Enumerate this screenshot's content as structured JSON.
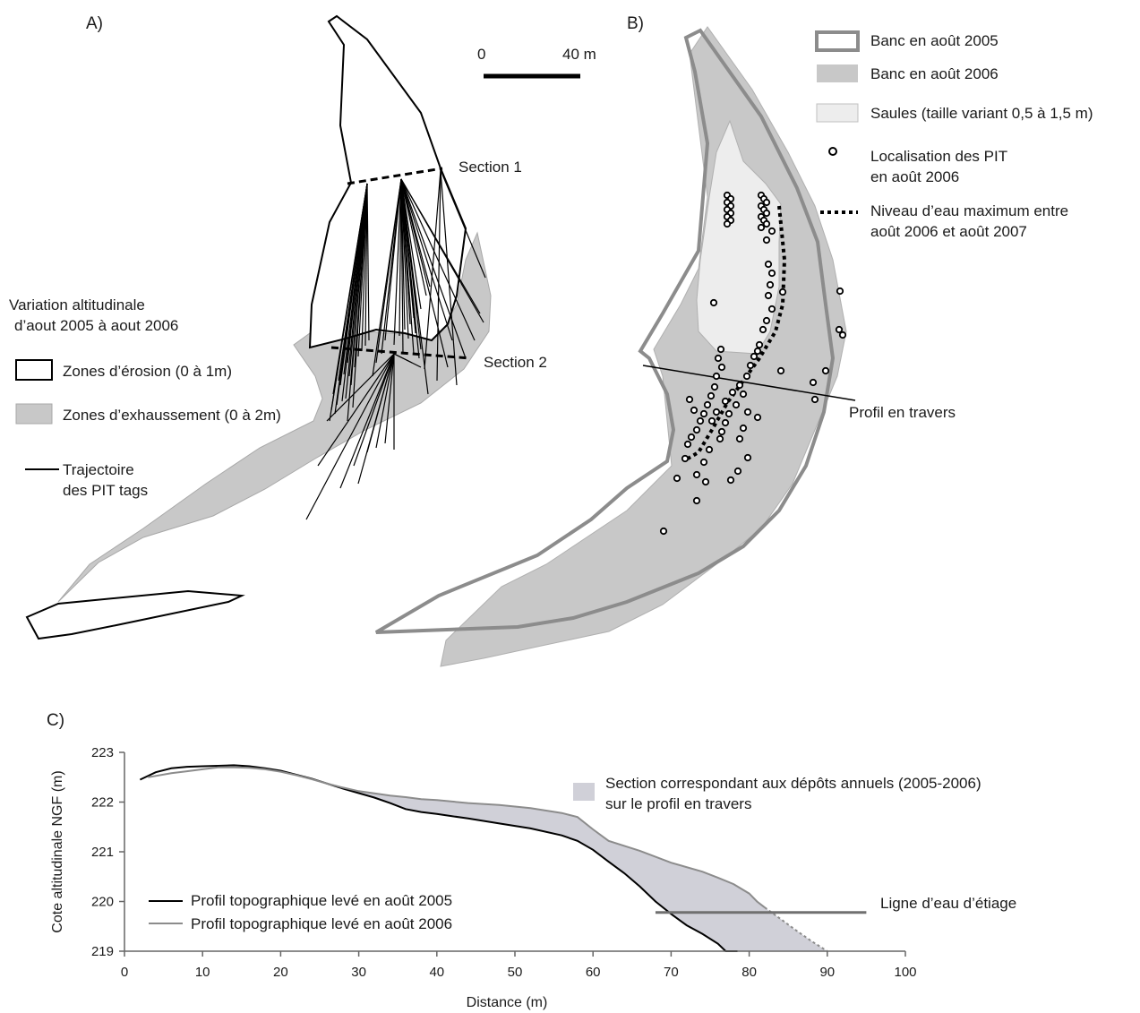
{
  "panel_a": {
    "label": "A)",
    "section1": "Section 1",
    "section2": "Section 2",
    "legend": {
      "title_line1": "Variation altitudinale",
      "title_line2": "d’aout 2005 à aout 2006",
      "erosion": "Zones d’érosion (0 à 1m)",
      "deposit": "Zones d’exhaussement (0 à 2m)",
      "trajectory_line1": "Trajectoire",
      "trajectory_line2": "des PIT tags"
    }
  },
  "scale_bar": {
    "start": "0",
    "end": "40 m"
  },
  "panel_b": {
    "label": "B)",
    "profile_label": "Profil en travers",
    "legend": {
      "bank_2005": "Banc en août 2005",
      "bank_2006": "Banc en août 2006",
      "willows": "Saules (taille variant 0,5 à 1,5 m)",
      "pit_line1": "Localisation des PIT",
      "pit_line2": "en août 2006",
      "water_line1": "Niveau d’eau maximum entre",
      "water_line2": "août 2006 et août 2007"
    }
  },
  "panel_c": {
    "label": "C)",
    "legend_area_line1": "Section  correspondant aux dépôts annuels  (2005-2006)",
    "legend_area_line2": "sur le profil en travers",
    "low_water_label": "Ligne d’eau d’étiage"
  },
  "colors": {
    "deposit_fill": "#c8c8c8",
    "willow_fill": "#ededed",
    "bank2005_stroke": "#8c8c8c",
    "section_fill": "#d0d0d8",
    "profile_2005": "#000000",
    "profile_2006": "#8c8c8c",
    "low_water": "#707070"
  },
  "chart_data": {
    "type": "line",
    "xlabel": "Distance (m)",
    "ylabel": "Cote altitudinale NGF (m)",
    "xlim": [
      0,
      100
    ],
    "ylim": [
      219,
      223
    ],
    "x_ticks": [
      "0",
      "10",
      "20",
      "30",
      "40",
      "50",
      "60",
      "70",
      "80",
      "90",
      "100"
    ],
    "y_ticks": [
      "219",
      "220",
      "221",
      "222",
      "223"
    ],
    "series": [
      {
        "name": "Profil topographique levé en août 2005",
        "color": "#000000",
        "x": [
          2,
          4,
          6,
          8,
          10,
          12,
          14,
          16,
          18,
          20,
          22,
          24,
          26,
          28,
          30,
          32,
          34,
          36,
          38,
          40,
          44,
          48,
          52,
          56,
          58,
          60,
          62,
          64,
          66,
          68,
          70,
          72,
          74,
          76,
          77,
          78.5
        ],
        "y": [
          222.45,
          222.6,
          222.68,
          222.71,
          222.72,
          222.73,
          222.74,
          222.72,
          222.68,
          222.63,
          222.55,
          222.47,
          222.37,
          222.27,
          222.18,
          222.09,
          221.98,
          221.86,
          221.8,
          221.76,
          221.67,
          221.57,
          221.47,
          221.33,
          221.22,
          221.04,
          220.8,
          220.57,
          220.3,
          220.0,
          219.75,
          219.52,
          219.35,
          219.15,
          219.0,
          218.9
        ]
      },
      {
        "name": "Profil topographique levé en août 2006",
        "color": "#8c8c8c",
        "x": [
          3,
          6,
          8,
          10,
          12,
          14,
          16,
          18,
          20,
          22,
          24,
          26,
          28,
          30,
          34,
          36,
          38,
          40,
          44,
          48,
          52,
          56,
          58,
          60,
          62,
          66,
          70,
          74,
          76,
          78,
          80,
          81,
          82
        ],
        "y": [
          222.5,
          222.58,
          222.62,
          222.66,
          222.7,
          222.7,
          222.69,
          222.66,
          222.61,
          222.54,
          222.46,
          222.37,
          222.29,
          222.22,
          222.13,
          222.1,
          222.06,
          222.04,
          221.98,
          221.94,
          221.88,
          221.78,
          221.7,
          221.45,
          221.22,
          221.02,
          220.78,
          220.6,
          220.48,
          220.35,
          220.16,
          220.0,
          219.88
        ]
      },
      {
        "name": "",
        "color": "#8c8c8c",
        "dashed": true,
        "x": [
          82,
          84,
          86,
          88,
          90
        ],
        "y": [
          219.88,
          219.65,
          219.42,
          219.2,
          218.98
        ]
      }
    ],
    "low_water": {
      "x": [
        68,
        95
      ],
      "y": 219.78
    }
  }
}
